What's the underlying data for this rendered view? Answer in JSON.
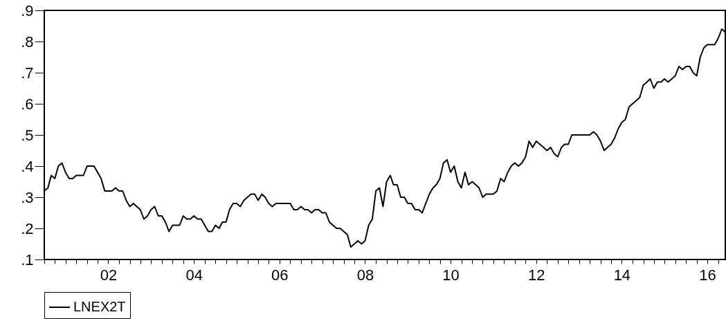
{
  "chart_data": {
    "type": "line",
    "legend": "bottom",
    "marker": "none",
    "line_style": "solid",
    "grid": false,
    "x": [
      "2001-01",
      "2001-02",
      "2001-03",
      "2001-04",
      "2001-05",
      "2001-06",
      "2001-07",
      "2001-08",
      "2001-09",
      "2001-10",
      "2001-11",
      "2001-12",
      "2002-01",
      "2002-02",
      "2002-03",
      "2002-04",
      "2002-05",
      "2002-06",
      "2002-07",
      "2002-08",
      "2002-09",
      "2002-10",
      "2002-11",
      "2002-12",
      "2003-01",
      "2003-02",
      "2003-03",
      "2003-04",
      "2003-05",
      "2003-06",
      "2003-07",
      "2003-08",
      "2003-09",
      "2003-10",
      "2003-11",
      "2003-12",
      "2004-01",
      "2004-02",
      "2004-03",
      "2004-04",
      "2004-05",
      "2004-06",
      "2004-07",
      "2004-08",
      "2004-09",
      "2004-10",
      "2004-11",
      "2004-12",
      "2005-01",
      "2005-02",
      "2005-03",
      "2005-04",
      "2005-05",
      "2005-06",
      "2005-07",
      "2005-08",
      "2005-09",
      "2005-10",
      "2005-11",
      "2005-12",
      "2006-01",
      "2006-02",
      "2006-03",
      "2006-04",
      "2006-05",
      "2006-06",
      "2006-07",
      "2006-08",
      "2006-09",
      "2006-10",
      "2006-11",
      "2006-12",
      "2007-01",
      "2007-02",
      "2007-03",
      "2007-04",
      "2007-05",
      "2007-06",
      "2007-07",
      "2007-08",
      "2007-09",
      "2007-10",
      "2007-11",
      "2007-12",
      "2008-01",
      "2008-02",
      "2008-03",
      "2008-04",
      "2008-05",
      "2008-06",
      "2008-07",
      "2008-08",
      "2008-09",
      "2008-10",
      "2008-11",
      "2008-12",
      "2009-01",
      "2009-02",
      "2009-03",
      "2009-04",
      "2009-05",
      "2009-06",
      "2009-07",
      "2009-08",
      "2009-09",
      "2009-10",
      "2009-11",
      "2009-12",
      "2010-01",
      "2010-02",
      "2010-03",
      "2010-04",
      "2010-05",
      "2010-06",
      "2010-07",
      "2010-08",
      "2010-09",
      "2010-10",
      "2010-11",
      "2010-12",
      "2011-01",
      "2011-02",
      "2011-03",
      "2011-04",
      "2011-05",
      "2011-06",
      "2011-07",
      "2011-08",
      "2011-09",
      "2011-10",
      "2011-11",
      "2011-12",
      "2012-01",
      "2012-02",
      "2012-03",
      "2012-04",
      "2012-05",
      "2012-06",
      "2012-07",
      "2012-08",
      "2012-09",
      "2012-10",
      "2012-11",
      "2012-12",
      "2013-01",
      "2013-02",
      "2013-03",
      "2013-04",
      "2013-05",
      "2013-06",
      "2013-07",
      "2013-08",
      "2013-09",
      "2013-10",
      "2013-11",
      "2013-12",
      "2014-01",
      "2014-02",
      "2014-03",
      "2014-04",
      "2014-05",
      "2014-06",
      "2014-07",
      "2014-08",
      "2014-09",
      "2014-10",
      "2014-11",
      "2014-12",
      "2015-01",
      "2015-02",
      "2015-03",
      "2015-04",
      "2015-05",
      "2015-06",
      "2015-07",
      "2015-08",
      "2015-09",
      "2015-10",
      "2015-11",
      "2015-12",
      "2016-01",
      "2016-02",
      "2016-03",
      "2016-04",
      "2016-05",
      "2016-06",
      "2016-07",
      "2016-08",
      "2016-09",
      "2016-10",
      "2016-11",
      "2016-12"
    ],
    "series": [
      {
        "name": "LNEX2T",
        "color": "#000000",
        "values": [
          0.32,
          0.33,
          0.37,
          0.36,
          0.4,
          0.41,
          0.38,
          0.36,
          0.36,
          0.37,
          0.37,
          0.37,
          0.4,
          0.4,
          0.4,
          0.38,
          0.36,
          0.32,
          0.32,
          0.32,
          0.33,
          0.32,
          0.32,
          0.29,
          0.27,
          0.28,
          0.27,
          0.26,
          0.23,
          0.24,
          0.26,
          0.27,
          0.24,
          0.24,
          0.22,
          0.19,
          0.21,
          0.21,
          0.21,
          0.24,
          0.23,
          0.23,
          0.24,
          0.23,
          0.23,
          0.21,
          0.19,
          0.19,
          0.21,
          0.2,
          0.22,
          0.22,
          0.26,
          0.28,
          0.28,
          0.27,
          0.29,
          0.3,
          0.31,
          0.31,
          0.29,
          0.31,
          0.3,
          0.28,
          0.27,
          0.28,
          0.28,
          0.28,
          0.28,
          0.28,
          0.26,
          0.26,
          0.27,
          0.26,
          0.26,
          0.25,
          0.26,
          0.26,
          0.25,
          0.25,
          0.22,
          0.21,
          0.2,
          0.2,
          0.19,
          0.18,
          0.14,
          0.15,
          0.16,
          0.15,
          0.16,
          0.21,
          0.23,
          0.32,
          0.33,
          0.27,
          0.35,
          0.37,
          0.34,
          0.34,
          0.3,
          0.3,
          0.28,
          0.28,
          0.26,
          0.26,
          0.25,
          0.28,
          0.31,
          0.33,
          0.34,
          0.36,
          0.41,
          0.42,
          0.38,
          0.4,
          0.35,
          0.33,
          0.38,
          0.34,
          0.35,
          0.34,
          0.33,
          0.3,
          0.31,
          0.31,
          0.31,
          0.32,
          0.36,
          0.35,
          0.38,
          0.4,
          0.41,
          0.4,
          0.41,
          0.43,
          0.48,
          0.46,
          0.48,
          0.47,
          0.46,
          0.45,
          0.46,
          0.44,
          0.43,
          0.46,
          0.47,
          0.47,
          0.5,
          0.5,
          0.5,
          0.5,
          0.5,
          0.5,
          0.51,
          0.5,
          0.48,
          0.45,
          0.46,
          0.47,
          0.49,
          0.52,
          0.54,
          0.55,
          0.59,
          0.6,
          0.61,
          0.62,
          0.66,
          0.67,
          0.68,
          0.65,
          0.67,
          0.67,
          0.68,
          0.67,
          0.68,
          0.69,
          0.72,
          0.71,
          0.72,
          0.72,
          0.7,
          0.69,
          0.75,
          0.78,
          0.79,
          0.79,
          0.79,
          0.81,
          0.84,
          0.83
        ]
      }
    ],
    "xlim": [
      "2001-01",
      "2016-12"
    ],
    "xticks": [
      {
        "value": "2001-01",
        "label": null
      },
      {
        "value": "2001-04",
        "label": null
      },
      {
        "value": "2001-07",
        "label": null
      },
      {
        "value": "2001-10",
        "label": null
      },
      {
        "value": "2002-01",
        "label": null
      },
      {
        "value": "2002-04",
        "label": null
      },
      {
        "value": "2002-07",
        "label": "02"
      },
      {
        "value": "2002-10",
        "label": null
      },
      {
        "value": "2003-01",
        "label": null
      },
      {
        "value": "2003-04",
        "label": null
      },
      {
        "value": "2003-07",
        "label": null
      },
      {
        "value": "2003-10",
        "label": null
      },
      {
        "value": "2004-01",
        "label": null
      },
      {
        "value": "2004-04",
        "label": null
      },
      {
        "value": "2004-07",
        "label": "04"
      },
      {
        "value": "2004-10",
        "label": null
      },
      {
        "value": "2005-01",
        "label": null
      },
      {
        "value": "2005-04",
        "label": null
      },
      {
        "value": "2005-07",
        "label": null
      },
      {
        "value": "2005-10",
        "label": null
      },
      {
        "value": "2006-01",
        "label": null
      },
      {
        "value": "2006-04",
        "label": null
      },
      {
        "value": "2006-07",
        "label": "06"
      },
      {
        "value": "2006-10",
        "label": null
      },
      {
        "value": "2007-01",
        "label": null
      },
      {
        "value": "2007-04",
        "label": null
      },
      {
        "value": "2007-07",
        "label": null
      },
      {
        "value": "2007-10",
        "label": null
      },
      {
        "value": "2008-01",
        "label": null
      },
      {
        "value": "2008-04",
        "label": null
      },
      {
        "value": "2008-07",
        "label": "08"
      },
      {
        "value": "2008-10",
        "label": null
      },
      {
        "value": "2009-01",
        "label": null
      },
      {
        "value": "2009-04",
        "label": null
      },
      {
        "value": "2009-07",
        "label": null
      },
      {
        "value": "2009-10",
        "label": null
      },
      {
        "value": "2010-01",
        "label": null
      },
      {
        "value": "2010-04",
        "label": null
      },
      {
        "value": "2010-07",
        "label": "10"
      },
      {
        "value": "2010-10",
        "label": null
      },
      {
        "value": "2011-01",
        "label": null
      },
      {
        "value": "2011-04",
        "label": null
      },
      {
        "value": "2011-07",
        "label": null
      },
      {
        "value": "2011-10",
        "label": null
      },
      {
        "value": "2012-01",
        "label": null
      },
      {
        "value": "2012-04",
        "label": null
      },
      {
        "value": "2012-07",
        "label": "12"
      },
      {
        "value": "2012-10",
        "label": null
      },
      {
        "value": "2013-01",
        "label": null
      },
      {
        "value": "2013-04",
        "label": null
      },
      {
        "value": "2013-07",
        "label": null
      },
      {
        "value": "2013-10",
        "label": null
      },
      {
        "value": "2014-01",
        "label": null
      },
      {
        "value": "2014-04",
        "label": null
      },
      {
        "value": "2014-07",
        "label": "14"
      },
      {
        "value": "2014-10",
        "label": null
      },
      {
        "value": "2015-01",
        "label": null
      },
      {
        "value": "2015-04",
        "label": null
      },
      {
        "value": "2015-07",
        "label": null
      },
      {
        "value": "2015-10",
        "label": null
      },
      {
        "value": "2016-01",
        "label": null
      },
      {
        "value": "2016-04",
        "label": null
      },
      {
        "value": "2016-07",
        "label": "16"
      },
      {
        "value": "2016-10",
        "label": null
      }
    ],
    "ylim": [
      0.1,
      0.9
    ],
    "yticks": [
      {
        "value": 0.1,
        "label": ".1"
      },
      {
        "value": 0.2,
        "label": ".2"
      },
      {
        "value": 0.3,
        "label": ".3"
      },
      {
        "value": 0.4,
        "label": ".4"
      },
      {
        "value": 0.5,
        "label": ".5"
      },
      {
        "value": 0.6,
        "label": ".6"
      },
      {
        "value": 0.7,
        "label": ".7"
      },
      {
        "value": 0.8,
        "label": ".8"
      },
      {
        "value": 0.9,
        "label": ".9"
      }
    ]
  }
}
